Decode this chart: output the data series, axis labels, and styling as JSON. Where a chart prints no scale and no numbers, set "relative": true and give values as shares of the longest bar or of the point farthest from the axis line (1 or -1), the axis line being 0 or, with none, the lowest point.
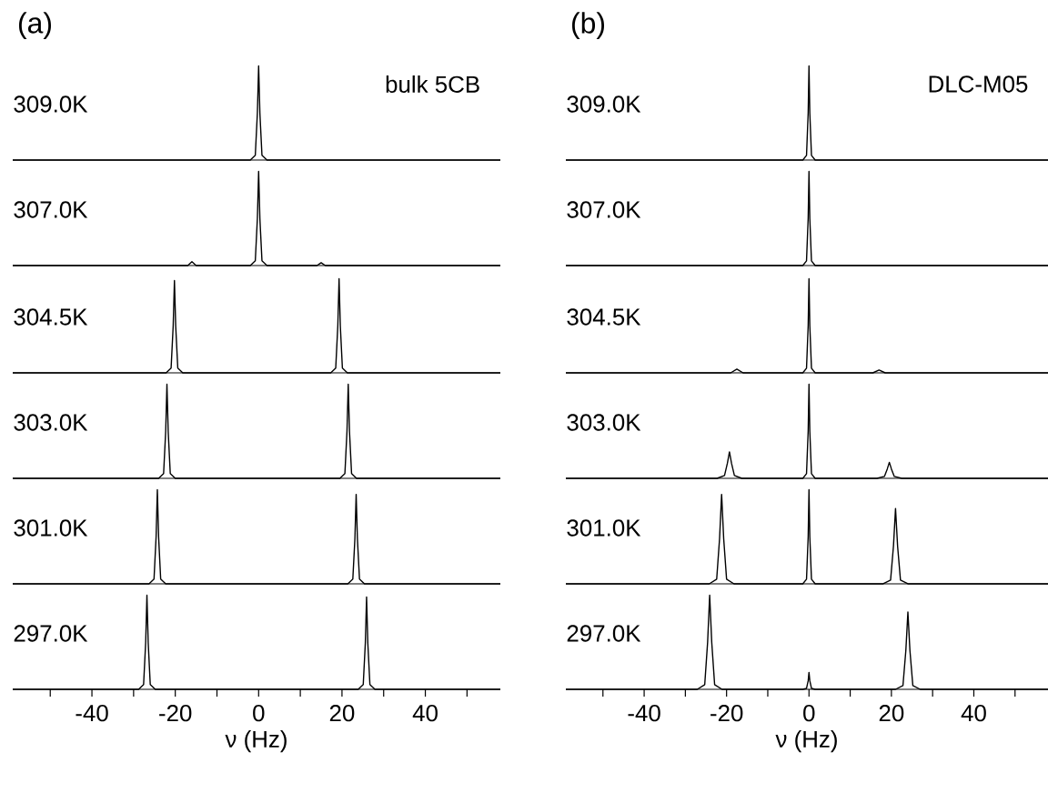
{
  "chart_data": [
    {
      "type": "line",
      "relative": true,
      "title": "(a)",
      "annotations": [
        "309.0K",
        "bulk 5CB"
      ],
      "color": "#000000",
      "xlim": [
        -59,
        58
      ],
      "tick_labels": false,
      "x": [
        -59,
        -2,
        -0.8,
        -0.3,
        0,
        0.3,
        0.8,
        2,
        58
      ],
      "values": [
        0,
        0,
        0.05,
        0.5,
        1,
        0.5,
        0.05,
        0,
        0
      ]
    },
    {
      "type": "line",
      "relative": true,
      "annotations": [
        "307.0K"
      ],
      "color": "#000000",
      "xlim": [
        -59,
        58
      ],
      "tick_labels": false,
      "x": [
        -59,
        -17,
        -16,
        -15,
        -2,
        -0.8,
        -0.3,
        0,
        0.3,
        0.8,
        2,
        14,
        15,
        16,
        58
      ],
      "values": [
        0,
        0,
        0.04,
        0,
        0,
        0.05,
        0.5,
        1,
        0.5,
        0.05,
        0,
        0,
        0.03,
        0,
        0
      ]
    },
    {
      "type": "line",
      "relative": true,
      "annotations": [
        "304.5K"
      ],
      "color": "#000000",
      "xlim": [
        -59,
        58
      ],
      "tick_labels": false,
      "x": [
        -59,
        -22.2,
        -21,
        -20.5,
        -20.2,
        -19.9,
        -19.4,
        -18.2,
        17.3,
        18.5,
        19,
        19.3,
        19.6,
        20.1,
        21.3,
        58
      ],
      "values": [
        0,
        0,
        0.05,
        0.5,
        0.98,
        0.5,
        0.05,
        0,
        0,
        0.05,
        0.5,
        1,
        0.5,
        0.05,
        0,
        0
      ]
    },
    {
      "type": "line",
      "relative": true,
      "annotations": [
        "303.0K"
      ],
      "color": "#000000",
      "xlim": [
        -59,
        58
      ],
      "tick_labels": false,
      "x": [
        -59,
        -24,
        -22.8,
        -22.3,
        -22,
        -21.7,
        -21.2,
        -20,
        19.5,
        20.7,
        21.2,
        21.5,
        21.8,
        22.3,
        23.5,
        58
      ],
      "values": [
        0,
        0,
        0.05,
        0.5,
        1,
        0.5,
        0.05,
        0,
        0,
        0.05,
        0.5,
        1,
        0.5,
        0.05,
        0,
        0
      ]
    },
    {
      "type": "line",
      "relative": true,
      "annotations": [
        "301.0K"
      ],
      "color": "#000000",
      "xlim": [
        -59,
        58
      ],
      "tick_labels": false,
      "x": [
        -59,
        -26.3,
        -25.1,
        -24.6,
        -24.3,
        -24,
        -23.5,
        -22.3,
        21.4,
        22.6,
        23.1,
        23.4,
        23.7,
        24.2,
        25.4,
        58
      ],
      "values": [
        0,
        0,
        0.05,
        0.5,
        1,
        0.5,
        0.05,
        0,
        0,
        0.05,
        0.48,
        0.95,
        0.48,
        0.05,
        0,
        0
      ]
    },
    {
      "type": "line",
      "relative": true,
      "annotations": [
        "297.0K"
      ],
      "xlabel": "ν (Hz)",
      "color": "#000000",
      "xlim": [
        -59,
        58
      ],
      "xticks": [
        {
          "value": -50,
          "label": null
        },
        -40,
        {
          "value": -30,
          "label": null
        },
        -20,
        {
          "value": -10,
          "label": null
        },
        0,
        {
          "value": 10,
          "label": null
        },
        20,
        {
          "value": 30,
          "label": null
        },
        40,
        {
          "value": 50,
          "label": null
        }
      ],
      "tick_labels": "x",
      "x": [
        -59,
        -28.8,
        -27.6,
        -27.1,
        -26.8,
        -26.5,
        -26,
        -24.8,
        23.9,
        25.1,
        25.6,
        25.9,
        26.2,
        26.7,
        27.9,
        58
      ],
      "values": [
        0,
        0,
        0.05,
        0.5,
        1,
        0.5,
        0.05,
        0,
        0,
        0.05,
        0.49,
        0.98,
        0.49,
        0.05,
        0,
        0
      ]
    },
    {
      "type": "line",
      "relative": true,
      "title": "(b)",
      "annotations": [
        "309.0K",
        "DLC-M05"
      ],
      "color": "#000000",
      "xlim": [
        -59,
        58
      ],
      "tick_labels": false,
      "x": [
        -59,
        -1.5,
        -0.6,
        -0.2,
        0,
        0.2,
        0.6,
        1.5,
        58
      ],
      "values": [
        0,
        0,
        0.05,
        0.5,
        1,
        0.5,
        0.05,
        0,
        0
      ]
    },
    {
      "type": "line",
      "relative": true,
      "annotations": [
        "307.0K"
      ],
      "color": "#000000",
      "xlim": [
        -59,
        58
      ],
      "tick_labels": false,
      "x": [
        -59,
        -1.5,
        -0.6,
        -0.2,
        0,
        0.2,
        0.6,
        1.5,
        58
      ],
      "values": [
        0,
        0,
        0.05,
        0.5,
        1,
        0.5,
        0.05,
        0,
        0
      ]
    },
    {
      "type": "line",
      "relative": true,
      "annotations": [
        "304.5K"
      ],
      "color": "#000000",
      "xlim": [
        -59,
        58
      ],
      "tick_labels": false,
      "x": [
        -59,
        -19,
        -17.5,
        -16,
        -1.5,
        -0.6,
        -0.2,
        0,
        0.2,
        0.6,
        1.5,
        15.5,
        17,
        18.5,
        58
      ],
      "values": [
        0,
        0,
        0.04,
        0,
        0,
        0.05,
        0.5,
        1,
        0.5,
        0.05,
        0,
        0,
        0.03,
        0,
        0
      ]
    },
    {
      "type": "line",
      "relative": true,
      "annotations": [
        "303.0K"
      ],
      "color": "#000000",
      "xlim": [
        -59,
        58
      ],
      "tick_labels": false,
      "x": [
        -59,
        -22.3,
        -20.5,
        -19.8,
        -19.3,
        -18.8,
        -18.1,
        -16.3,
        -1.5,
        -0.6,
        -0.2,
        0,
        0.2,
        0.6,
        1.5,
        16.5,
        18.3,
        19,
        19.5,
        20,
        20.7,
        22.5,
        58
      ],
      "values": [
        0,
        0,
        0.03,
        0.16,
        0.28,
        0.16,
        0.03,
        0,
        0,
        0.05,
        0.5,
        1,
        0.5,
        0.05,
        0,
        0,
        0.02,
        0.1,
        0.17,
        0.1,
        0.02,
        0,
        0
      ]
    },
    {
      "type": "line",
      "relative": true,
      "annotations": [
        "301.0K"
      ],
      "color": "#000000",
      "xlim": [
        -59,
        58
      ],
      "tick_labels": false,
      "x": [
        -59,
        -24.2,
        -22.4,
        -21.7,
        -21.2,
        -20.7,
        -20,
        -18.2,
        -1.5,
        -0.6,
        -0.2,
        0,
        0.2,
        0.6,
        1.5,
        18,
        19.8,
        20.5,
        21,
        21.5,
        22.2,
        24,
        58
      ],
      "values": [
        0,
        0,
        0.05,
        0.48,
        0.95,
        0.48,
        0.05,
        0,
        0,
        0.05,
        0.5,
        1,
        0.5,
        0.05,
        0,
        0,
        0.04,
        0.4,
        0.8,
        0.4,
        0.04,
        0,
        0
      ]
    },
    {
      "type": "line",
      "relative": true,
      "annotations": [
        "297.0K"
      ],
      "xlabel": "ν (Hz)",
      "color": "#000000",
      "xlim": [
        -59,
        58
      ],
      "xticks": [
        {
          "value": -50,
          "label": null
        },
        -40,
        {
          "value": -30,
          "label": null
        },
        -20,
        {
          "value": -10,
          "label": null
        },
        0,
        {
          "value": 10,
          "label": null
        },
        20,
        {
          "value": 30,
          "label": null
        },
        40,
        {
          "value": 50,
          "label": null
        }
      ],
      "tick_labels": "x",
      "x": [
        -59,
        -27.1,
        -25.3,
        -24.6,
        -24.1,
        -23.6,
        -22.9,
        -21.1,
        -1.5,
        -0.6,
        -0.2,
        0,
        0.2,
        0.6,
        1.5,
        21,
        22.8,
        23.5,
        24,
        24.5,
        25.2,
        27,
        58
      ],
      "values": [
        0,
        0,
        0.05,
        0.5,
        1,
        0.5,
        0.05,
        0,
        0,
        0.01,
        0.09,
        0.18,
        0.09,
        0.01,
        0,
        0,
        0.04,
        0.41,
        0.82,
        0.41,
        0.04,
        0,
        0
      ]
    }
  ]
}
